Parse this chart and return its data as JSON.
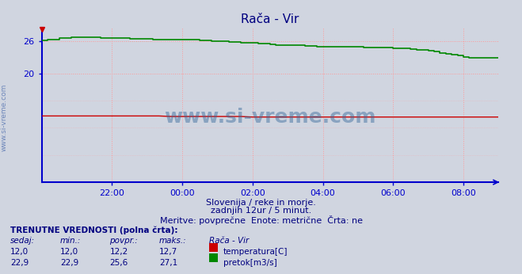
{
  "title": "Rača - Vir",
  "bg_color": "#d0d5e0",
  "plot_bg_color": "#d0d5e0",
  "grid_color": "#ff9999",
  "axis_color": "#0000cc",
  "title_color": "#000080",
  "text_color": "#000080",
  "watermark": "www.si-vreme.com",
  "side_label": "www.si-vreme.com",
  "subtitle1": "Slovenija / reke in morje.",
  "subtitle2": "zadnjih 12ur / 5 minut.",
  "subtitle3": "Meritve: povprečne  Enote: metrične  Črta: ne",
  "legend_title": "TRENUTNE VREDNOSTI (polna črta):",
  "legend_headers": [
    "sedaj:",
    "min.:",
    "povpr.:",
    "maks.:",
    "Rača - Vir"
  ],
  "temp_row": [
    "12,0",
    "12,0",
    "12,2",
    "12,7",
    "temperatura[C]"
  ],
  "flow_row": [
    "22,9",
    "22,9",
    "25,6",
    "27,1",
    "pretok[m3/s]"
  ],
  "temp_color": "#cc0000",
  "flow_color": "#008800",
  "xmin": -720,
  "xmax": 60,
  "ymin": 0,
  "ymax": 28.5,
  "ytick_vals": [
    20,
    26
  ],
  "ytick_labels": [
    "20",
    "26"
  ],
  "xtick_positions": [
    -600,
    -480,
    -360,
    -240,
    -120,
    0
  ],
  "xtick_labels": [
    "22:00",
    "00:00",
    "02:00",
    "04:00",
    "06:00",
    "08:00"
  ],
  "temp_x": [
    -720,
    -700,
    -680,
    -660,
    -640,
    -620,
    -600,
    -580,
    -560,
    -540,
    -520,
    -500,
    -480,
    -460,
    -440,
    -420,
    -400,
    -380,
    -360,
    -340,
    -320,
    -300,
    -280,
    -260,
    -240,
    -220,
    -200,
    -180,
    -160,
    -140,
    -120,
    -100,
    -80,
    -60,
    -40,
    -20,
    0,
    20,
    40,
    60
  ],
  "temp_y": [
    12.2,
    12.2,
    12.2,
    12.2,
    12.2,
    12.2,
    12.2,
    12.2,
    12.2,
    12.2,
    12.2,
    12.1,
    12.1,
    12.1,
    12.1,
    12.1,
    12.1,
    12.1,
    12.0,
    12.0,
    12.0,
    12.0,
    12.0,
    12.0,
    12.0,
    12.0,
    12.0,
    12.0,
    12.0,
    12.0,
    12.0,
    12.0,
    12.0,
    12.0,
    12.0,
    12.0,
    12.0,
    12.0,
    12.0,
    12.0
  ],
  "flow_x": [
    -720,
    -710,
    -700,
    -690,
    -680,
    -670,
    -660,
    -650,
    -640,
    -630,
    -620,
    -610,
    -600,
    -590,
    -580,
    -570,
    -560,
    -550,
    -540,
    -530,
    -520,
    -510,
    -500,
    -490,
    -480,
    -470,
    -460,
    -450,
    -440,
    -430,
    -420,
    -410,
    -400,
    -390,
    -380,
    -370,
    -360,
    -350,
    -340,
    -330,
    -320,
    -310,
    -300,
    -290,
    -280,
    -270,
    -260,
    -250,
    -240,
    -230,
    -220,
    -210,
    -200,
    -190,
    -180,
    -170,
    -160,
    -150,
    -140,
    -130,
    -120,
    -110,
    -100,
    -90,
    -80,
    -70,
    -60,
    -50,
    -40,
    -30,
    -20,
    -10,
    0,
    10,
    20,
    30,
    40,
    50,
    60
  ],
  "flow_y": [
    26.1,
    26.2,
    26.3,
    26.5,
    26.6,
    26.7,
    26.7,
    26.7,
    26.7,
    26.7,
    26.6,
    26.6,
    26.5,
    26.5,
    26.5,
    26.4,
    26.4,
    26.4,
    26.4,
    26.3,
    26.3,
    26.3,
    26.3,
    26.3,
    26.3,
    26.2,
    26.2,
    26.1,
    26.1,
    26.0,
    26.0,
    25.9,
    25.8,
    25.8,
    25.7,
    25.7,
    25.6,
    25.5,
    25.5,
    25.4,
    25.3,
    25.3,
    25.3,
    25.2,
    25.2,
    25.1,
    25.1,
    25.0,
    25.0,
    25.0,
    24.9,
    24.9,
    24.9,
    24.9,
    24.9,
    24.8,
    24.8,
    24.8,
    24.8,
    24.8,
    24.7,
    24.7,
    24.6,
    24.5,
    24.4,
    24.3,
    24.2,
    24.0,
    23.8,
    23.7,
    23.5,
    23.3,
    23.1,
    22.9,
    22.9,
    22.9,
    22.9,
    22.9,
    22.9
  ]
}
